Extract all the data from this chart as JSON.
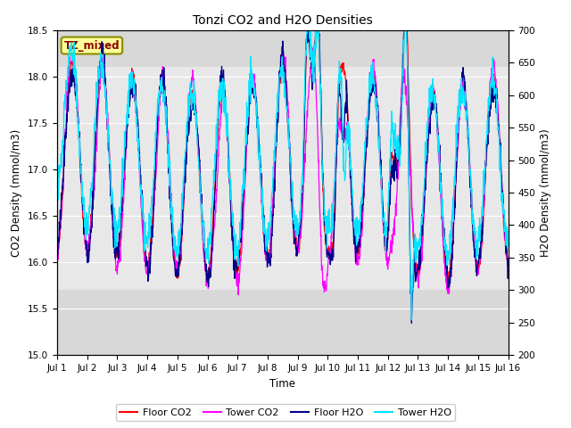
{
  "title": "Tonzi CO2 and H2O Densities",
  "xlabel": "Time",
  "ylabel_left": "CO2 Density (mmol/m3)",
  "ylabel_right": "H2O Density (mmol/m3)",
  "annotation": "TZ_mixed",
  "ylim_left": [
    15.0,
    18.5
  ],
  "ylim_right": [
    200,
    700
  ],
  "yticks_left": [
    15.0,
    15.5,
    16.0,
    16.5,
    17.0,
    17.5,
    18.0,
    18.5
  ],
  "yticks_right": [
    200,
    250,
    300,
    350,
    400,
    450,
    500,
    550,
    600,
    650,
    700
  ],
  "xtick_labels": [
    "Jul 1",
    "Jul 2",
    "Jul 3",
    "Jul 4",
    "Jul 5",
    "Jul 6",
    "Jul 7",
    "Jul 8",
    "Jul 9",
    "Jul 10",
    "Jul 11",
    "Jul 12",
    "Jul 13",
    "Jul 14",
    "Jul 15",
    "Jul 16"
  ],
  "colors": {
    "floor_co2": "#ff0000",
    "tower_co2": "#ff00ff",
    "floor_h2o": "#00008b",
    "tower_h2o": "#00e5ff"
  },
  "legend_labels": [
    "Floor CO2",
    "Tower CO2",
    "Floor H2O",
    "Tower H2O"
  ],
  "fig_facecolor": "#ffffff",
  "plot_facecolor": "#d8d8d8",
  "band_facecolor": "#e8e8e8",
  "grid_color": "#ffffff",
  "annotation_box_facecolor": "#ffff99",
  "annotation_box_edgecolor": "#8b8b00",
  "annotation_text_color": "#8b0000",
  "n_points": 1500,
  "n_days": 15,
  "line_width": 0.9,
  "band_co2_low": 15.7,
  "band_co2_high": 18.1
}
